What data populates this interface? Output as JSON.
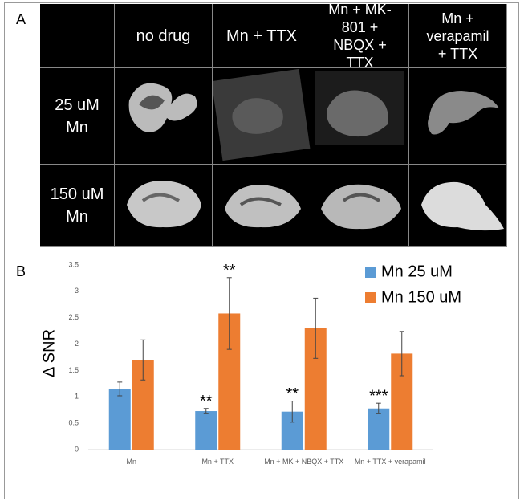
{
  "panel_a": {
    "letter": "A",
    "columns": [
      "no drug",
      "Mn + TTX",
      "Mn + MK-801 + NBQX + TTX",
      "Mn + verapamil + TTX"
    ],
    "rows": [
      "25 uM Mn",
      "150 uM Mn"
    ]
  },
  "panel_b": {
    "letter": "B"
  },
  "chart_data": {
    "type": "bar",
    "y_label": "Δ SNR",
    "categories": [
      "Mn",
      "Mn + TTX",
      "Mn + MK + NBQX + TTX",
      "Mn + TTX + verapamil"
    ],
    "series": [
      {
        "name": "Mn 25 uM",
        "color": "#5b9bd5",
        "values": [
          1.15,
          0.73,
          0.72,
          0.78
        ],
        "errors": [
          0.13,
          0.05,
          0.2,
          0.1
        ],
        "labels": [
          null,
          "**",
          "**",
          "***"
        ]
      },
      {
        "name": "Mn 150 uM",
        "color": "#ed7d31",
        "values": [
          1.7,
          2.58,
          2.3,
          1.82
        ],
        "errors": [
          0.38,
          0.68,
          0.57,
          0.42
        ],
        "labels": [
          null,
          "**",
          null,
          null
        ]
      }
    ],
    "ylim": [
      0,
      3.5
    ],
    "yticks": [
      0,
      0.5,
      1,
      1.5,
      2,
      2.5,
      3,
      3.5
    ],
    "legend": "top-right"
  }
}
